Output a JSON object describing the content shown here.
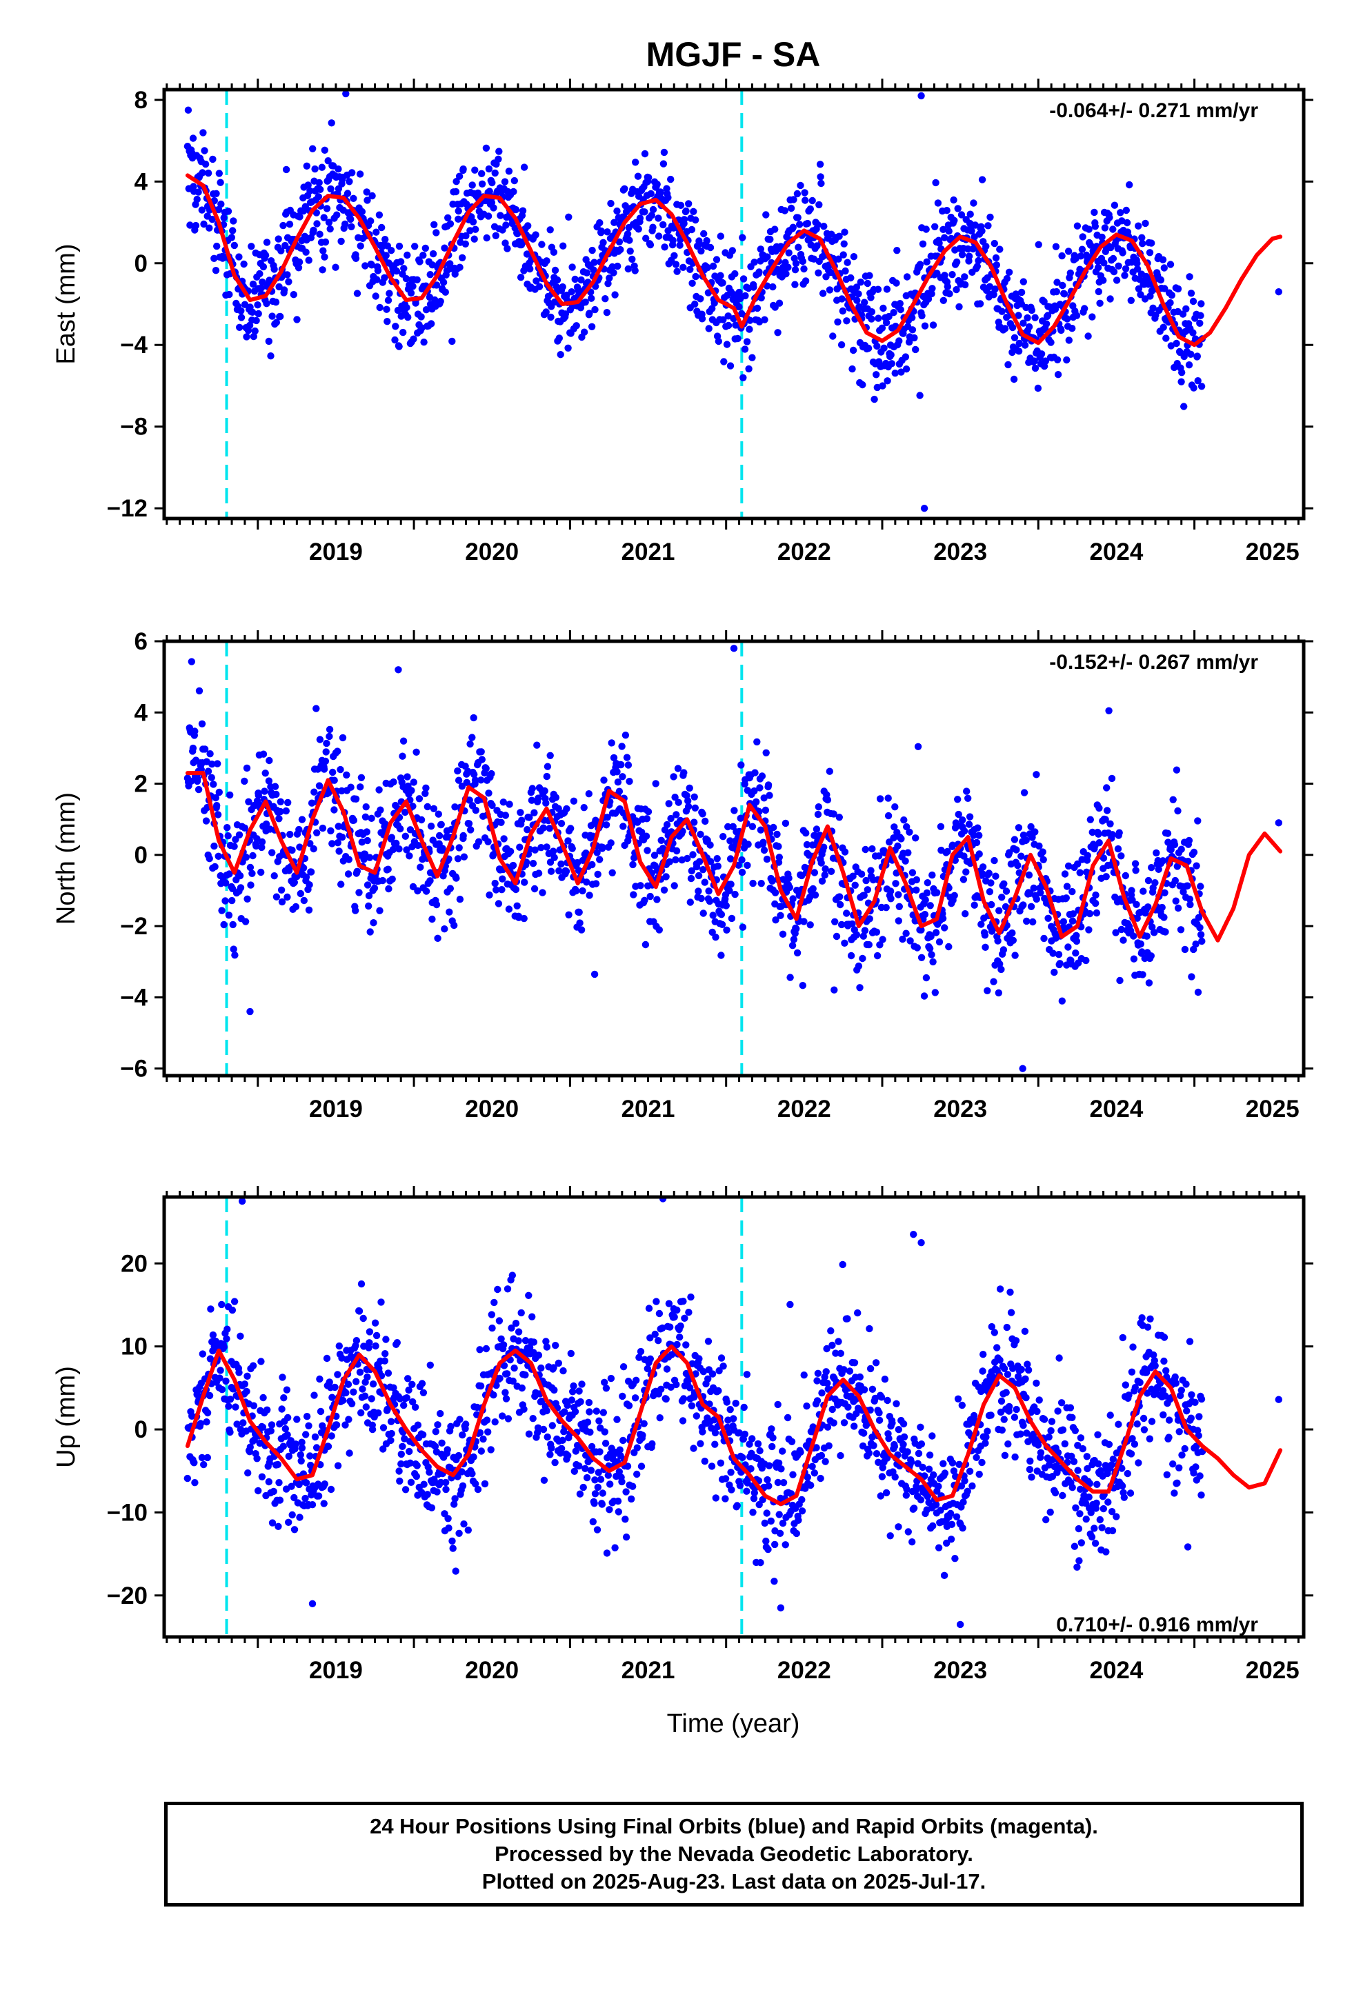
{
  "title": "MGJF - SA",
  "xlabel": "Time (year)",
  "footer": [
    "24 Hour Positions Using Final Orbits (blue) and Rapid Orbits (magenta).",
    "Processed by the Nevada Geodetic Laboratory.",
    "Plotted on 2025-Aug-23. Last data on 2025-Jul-17."
  ],
  "colors": {
    "final_orbits": "#0000ff",
    "model_fit": "#ff0000",
    "equipment_change": "#00e5ee"
  },
  "chart_data": [
    {
      "type": "scatter",
      "component": "East",
      "ylabel": "East (mm)",
      "xlim": [
        2018.4,
        2025.7
      ],
      "ylim": [
        -12.5,
        8.5
      ],
      "yticks": [
        8,
        4,
        0,
        -4,
        -8,
        -12
      ],
      "xticks": [
        2019,
        2020,
        2021,
        2022,
        2023,
        2024,
        2025
      ],
      "rate_label": "-0.064+/- 0.271 mm/yr",
      "rate_position": "top-right",
      "equipment_changes": [
        2018.8,
        2022.1
      ],
      "fit": {
        "x": [
          2018.55,
          2018.65,
          2018.75,
          2018.85,
          2018.95,
          2019.05,
          2019.15,
          2019.25,
          2019.35,
          2019.45,
          2019.55,
          2019.65,
          2019.75,
          2019.85,
          2019.95,
          2020.05,
          2020.15,
          2020.25,
          2020.35,
          2020.45,
          2020.55,
          2020.65,
          2020.75,
          2020.85,
          2020.95,
          2021.05,
          2021.15,
          2021.25,
          2021.35,
          2021.45,
          2021.55,
          2021.65,
          2021.75,
          2021.85,
          2021.95,
          2022.05,
          2022.1,
          2022.2,
          2022.3,
          2022.4,
          2022.5,
          2022.6,
          2022.7,
          2022.8,
          2022.9,
          2023.0,
          2023.1,
          2023.2,
          2023.3,
          2023.4,
          2023.5,
          2023.6,
          2023.7,
          2023.8,
          2023.9,
          2024.0,
          2024.1,
          2024.2,
          2024.3,
          2024.4,
          2024.5,
          2024.6,
          2024.7,
          2024.8,
          2024.9,
          2025.0,
          2025.1,
          2025.2,
          2025.3,
          2025.4,
          2025.5,
          2025.55
        ],
        "y": [
          4.3,
          3.8,
          2.0,
          -0.6,
          -1.8,
          -1.6,
          -0.4,
          1.2,
          2.6,
          3.3,
          3.2,
          2.2,
          0.8,
          -0.7,
          -1.8,
          -1.7,
          -0.6,
          1.0,
          2.5,
          3.3,
          3.2,
          2.2,
          0.6,
          -1.0,
          -2.0,
          -1.9,
          -0.9,
          0.6,
          2.0,
          2.9,
          3.1,
          2.4,
          1.0,
          -0.6,
          -1.8,
          -2.2,
          -3.1,
          -1.5,
          -0.2,
          1.0,
          1.6,
          1.2,
          -0.3,
          -2.0,
          -3.4,
          -3.8,
          -3.3,
          -2.0,
          -0.6,
          0.6,
          1.3,
          1.0,
          -0.2,
          -2.0,
          -3.5,
          -3.9,
          -3.1,
          -1.8,
          -0.4,
          0.8,
          1.4,
          1.1,
          -0.1,
          -2.0,
          -3.6,
          -4.0,
          -3.4,
          -2.2,
          -0.8,
          0.4,
          1.2,
          1.3
        ]
      },
      "scatter_spread_mm": 1.3,
      "outliers": [
        {
          "x": 2023.25,
          "y": 8.2
        },
        {
          "x": 2023.27,
          "y": -12.0
        },
        {
          "x": 2025.54,
          "y": -1.4
        }
      ]
    },
    {
      "type": "scatter",
      "component": "North",
      "ylabel": "North (mm)",
      "xlim": [
        2018.4,
        2025.7
      ],
      "ylim": [
        -6.2,
        6.0
      ],
      "yticks": [
        6,
        4,
        2,
        0,
        -2,
        -4,
        -6
      ],
      "xticks": [
        2019,
        2020,
        2021,
        2022,
        2023,
        2024,
        2025
      ],
      "rate_label": "-0.152+/- 0.267 mm/yr",
      "rate_position": "top-right",
      "equipment_changes": [
        2018.8,
        2022.1
      ],
      "fit": {
        "x": [
          2018.55,
          2018.65,
          2018.75,
          2018.85,
          2018.95,
          2019.05,
          2019.15,
          2019.25,
          2019.35,
          2019.45,
          2019.55,
          2019.65,
          2019.75,
          2019.85,
          2019.95,
          2020.05,
          2020.15,
          2020.25,
          2020.35,
          2020.45,
          2020.55,
          2020.65,
          2020.75,
          2020.85,
          2020.95,
          2021.05,
          2021.15,
          2021.25,
          2021.35,
          2021.45,
          2021.55,
          2021.65,
          2021.75,
          2021.85,
          2021.95,
          2022.05,
          2022.15,
          2022.25,
          2022.35,
          2022.45,
          2022.55,
          2022.65,
          2022.75,
          2022.85,
          2022.95,
          2023.05,
          2023.15,
          2023.25,
          2023.35,
          2023.45,
          2023.55,
          2023.65,
          2023.75,
          2023.85,
          2023.95,
          2024.05,
          2024.15,
          2024.25,
          2024.35,
          2024.45,
          2024.55,
          2024.65,
          2024.75,
          2024.85,
          2024.95,
          2025.05,
          2025.15,
          2025.25,
          2025.35,
          2025.45,
          2025.55
        ],
        "y": [
          2.3,
          2.3,
          0.4,
          -0.5,
          0.7,
          1.5,
          0.4,
          -0.5,
          1.0,
          2.1,
          1.2,
          -0.3,
          -0.5,
          0.9,
          1.5,
          0.4,
          -0.6,
          0.5,
          1.9,
          1.6,
          -0.1,
          -0.8,
          0.6,
          1.3,
          0.3,
          -0.8,
          0.2,
          1.8,
          1.5,
          -0.2,
          -0.9,
          0.5,
          1.0,
          0.0,
          -1.1,
          -0.3,
          1.4,
          0.8,
          -1.0,
          -1.8,
          -0.2,
          0.8,
          -0.5,
          -2.0,
          -1.3,
          0.2,
          -0.8,
          -2.0,
          -1.8,
          0.0,
          0.5,
          -1.3,
          -2.2,
          -1.2,
          0.0,
          -0.9,
          -2.3,
          -2.0,
          -0.3,
          0.4,
          -1.2,
          -2.3,
          -1.4,
          -0.1,
          -0.3,
          -1.6,
          -2.4,
          -1.5,
          0.0,
          0.6,
          0.1
        ]
      },
      "scatter_spread_mm": 0.9,
      "outliers": [
        {
          "x": 2022.05,
          "y": 5.8
        },
        {
          "x": 2019.9,
          "y": 5.2
        },
        {
          "x": 2018.95,
          "y": -4.4
        },
        {
          "x": 2023.9,
          "y": -6.0
        },
        {
          "x": 2025.54,
          "y": 0.9
        }
      ]
    },
    {
      "type": "scatter",
      "component": "Up",
      "ylabel": "Up (mm)",
      "xlim": [
        2018.4,
        2025.7
      ],
      "ylim": [
        -25,
        28
      ],
      "yticks": [
        20,
        10,
        0,
        -10,
        -20
      ],
      "xticks": [
        2019,
        2020,
        2021,
        2022,
        2023,
        2024,
        2025
      ],
      "rate_label": "0.710+/- 0.916 mm/yr",
      "rate_position": "bottom-right",
      "equipment_changes": [
        2018.8,
        2022.1
      ],
      "fit": {
        "x": [
          2018.55,
          2018.65,
          2018.75,
          2018.85,
          2018.95,
          2019.05,
          2019.15,
          2019.25,
          2019.35,
          2019.45,
          2019.55,
          2019.65,
          2019.75,
          2019.85,
          2019.95,
          2020.05,
          2020.15,
          2020.25,
          2020.35,
          2020.45,
          2020.55,
          2020.65,
          2020.75,
          2020.85,
          2020.95,
          2021.05,
          2021.15,
          2021.25,
          2021.35,
          2021.45,
          2021.55,
          2021.65,
          2021.75,
          2021.85,
          2021.95,
          2022.05,
          2022.15,
          2022.25,
          2022.35,
          2022.45,
          2022.55,
          2022.65,
          2022.75,
          2022.85,
          2022.95,
          2023.05,
          2023.15,
          2023.25,
          2023.35,
          2023.45,
          2023.55,
          2023.65,
          2023.75,
          2023.85,
          2023.95,
          2024.05,
          2024.15,
          2024.25,
          2024.35,
          2024.45,
          2024.55,
          2024.65,
          2024.75,
          2024.85,
          2024.95,
          2025.05,
          2025.15,
          2025.25,
          2025.35,
          2025.45,
          2025.55
        ],
        "y": [
          -2,
          4,
          9.5,
          6,
          1,
          -1.5,
          -3.5,
          -6,
          -5.5,
          0,
          6,
          9,
          7,
          3,
          0,
          -2.5,
          -4.5,
          -5.5,
          -3,
          3,
          8,
          9.5,
          8,
          3.5,
          1,
          -1,
          -3.5,
          -5,
          -4,
          2,
          8,
          10,
          8,
          3,
          1.5,
          -3.5,
          -5.5,
          -8,
          -9,
          -8,
          -2,
          4,
          6,
          4,
          0,
          -3,
          -4.5,
          -6,
          -8.5,
          -8,
          -3,
          3,
          6.5,
          5,
          1,
          -2,
          -4,
          -6,
          -7.5,
          -7.5,
          -2,
          4,
          7,
          5,
          0,
          -2,
          -3.5,
          -5.5,
          -7,
          -6.5,
          -2.5
        ]
      },
      "scatter_spread_mm": 4.0,
      "outliers": [
        {
          "x": 2018.9,
          "y": 27.5
        },
        {
          "x": 2019.35,
          "y": -21.0
        },
        {
          "x": 2023.2,
          "y": 23.5
        },
        {
          "x": 2023.25,
          "y": 22.5
        },
        {
          "x": 2023.5,
          "y": -23.5
        },
        {
          "x": 2022.35,
          "y": -21.5
        },
        {
          "x": 2025.54,
          "y": 3.6
        }
      ]
    }
  ]
}
